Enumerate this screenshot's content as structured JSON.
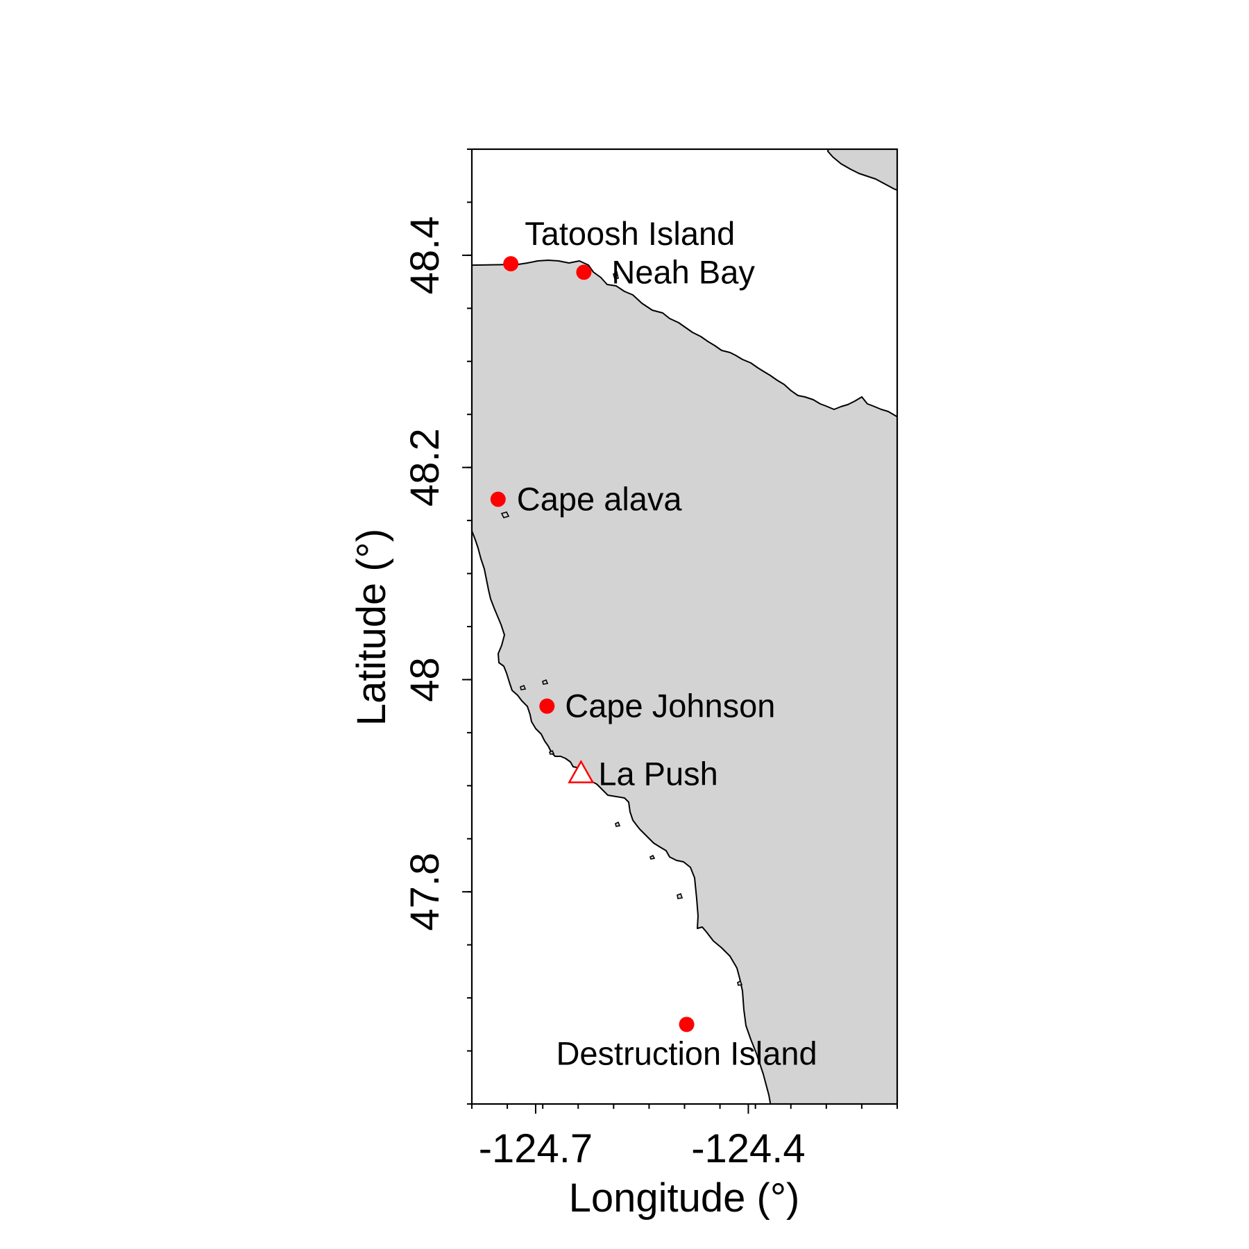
{
  "map": {
    "xlabel": "Longitude (°)",
    "ylabel": "Latitude (°)",
    "xlim": [
      -124.79,
      -124.19
    ],
    "ylim": [
      47.6,
      48.5
    ],
    "x_major_ticks": [
      -124.7,
      -124.4
    ],
    "x_major_tick_labels": [
      "-124.7",
      "-124.4"
    ],
    "y_major_ticks": [
      47.8,
      48.0,
      48.2,
      48.4
    ],
    "y_major_tick_labels": [
      "47.8",
      "48",
      "48.2",
      "48.4"
    ],
    "x_minor_step": 0.05,
    "y_minor_step": 0.05,
    "land_color": "#d3d3d3",
    "coast_color": "#000000",
    "marker_color": "#ff0000"
  },
  "sites": [
    {
      "name": "Tatoosh Island",
      "lon": -124.735,
      "lat": 48.392,
      "marker": "circle"
    },
    {
      "name": "Neah Bay",
      "lon": -124.632,
      "lat": 48.384,
      "marker": "circle"
    },
    {
      "name": "Cape alava",
      "lon": -124.753,
      "lat": 48.17,
      "marker": "circle"
    },
    {
      "name": "Cape Johnson",
      "lon": -124.684,
      "lat": 47.975,
      "marker": "circle"
    },
    {
      "name": "La Push",
      "lon": -124.636,
      "lat": 47.911,
      "marker": "triangle"
    },
    {
      "name": "Destruction Island",
      "lon": -124.487,
      "lat": 47.675,
      "marker": "circle"
    }
  ]
}
